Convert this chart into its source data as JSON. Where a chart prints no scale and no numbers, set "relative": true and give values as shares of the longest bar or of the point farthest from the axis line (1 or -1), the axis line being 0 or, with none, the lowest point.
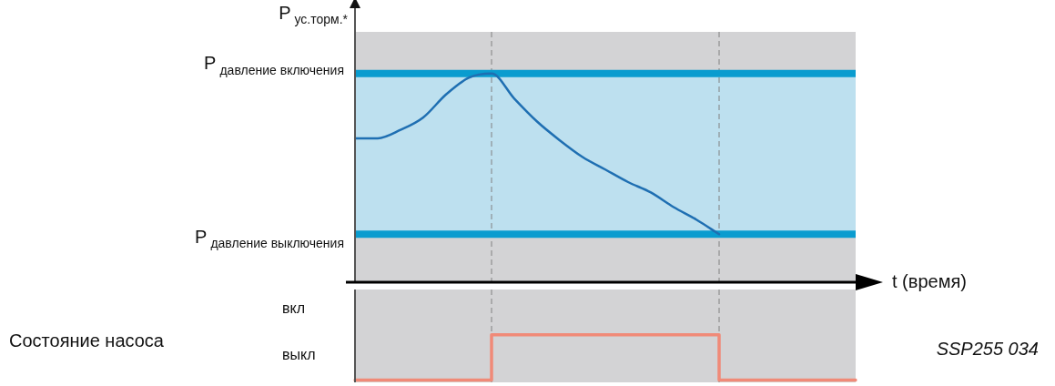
{
  "chart_data": [
    {
      "type": "line",
      "relative": true,
      "ylabel": "P$_{ус.торм.*}$",
      "xlabel": "t (время)",
      "categories": [
        null,
        null,
        null,
        null,
        null,
        null,
        null,
        null,
        null,
        null,
        null,
        null,
        null,
        null,
        null,
        null,
        null,
        null,
        null,
        null,
        null,
        null,
        null
      ],
      "series": [
        {
          "color": "#1f6fb2",
          "values": [
            0.69,
            0.69,
            0.73,
            0.79,
            0.9,
            0.98,
            1.0,
            0.88,
            0.77,
            0.68,
            0.6,
            0.54,
            0.48,
            0.43,
            0.36,
            0.3,
            0.23,
            null,
            null,
            null,
            null,
            null,
            null
          ]
        }
      ],
      "ref_lines": [
        {
          "axis": "y",
          "value": 1.0,
          "label": "P$_{давление включения}$",
          "color": "#0a9ccf"
        },
        {
          "axis": "y",
          "value": 0.23,
          "label": "P$_{давление выключения}$",
          "color": "#0a9ccf"
        }
      ],
      "bands": [
        {
          "axis": "y",
          "from": 0.23,
          "to": 1.0,
          "color": "#bde0ef"
        }
      ],
      "legend": false,
      "marker": "none",
      "line_style": "solid"
    },
    {
      "type": "step",
      "relative": true,
      "ylabel": "Состояние насоса",
      "categories": [
        null,
        null,
        null,
        null,
        null,
        null,
        null,
        null,
        null,
        null,
        null,
        null,
        null,
        null,
        null,
        null,
        null,
        null,
        null,
        null,
        null,
        null,
        null
      ],
      "series": [
        {
          "color": "#f08a78",
          "values": [
            0,
            0,
            0,
            0,
            0,
            0,
            1,
            1,
            1,
            1,
            1,
            1,
            1,
            1,
            1,
            1,
            0,
            0,
            0,
            0,
            0,
            0,
            0
          ]
        }
      ],
      "annotations": [
        "вкл",
        "выкл",
        "SSP255 034"
      ],
      "legend": false,
      "marker": "none",
      "line_style": "solid"
    }
  ]
}
